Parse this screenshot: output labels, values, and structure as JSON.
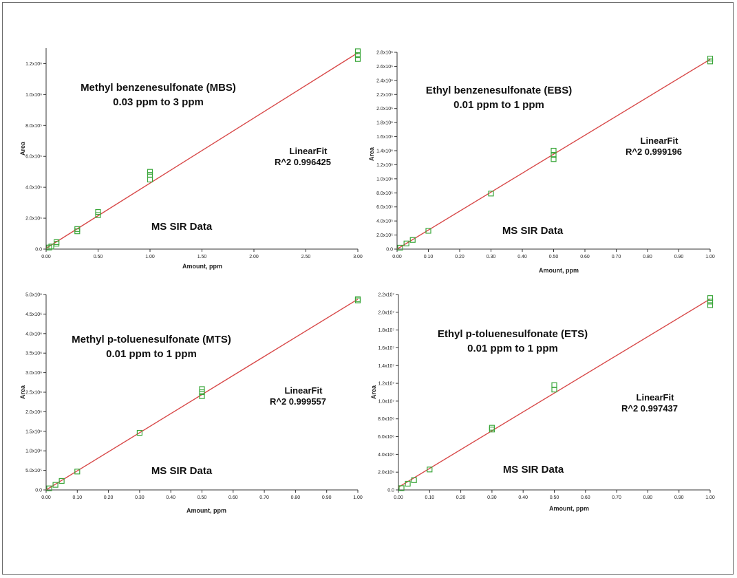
{
  "colors": {
    "fit_line": "#d84a4a",
    "points": "#3aa63a",
    "axis": "#333333"
  },
  "chart_data": [
    {
      "type": "scatter",
      "title_lines": [
        "Methyl benzenesulfonate (MBS)",
        "0.03 ppm to 3 ppm"
      ],
      "fit_label": "LinearFit",
      "r2_label": "R^2  0.996425",
      "annotation": "MS SIR Data",
      "xlabel": "Amount, ppm",
      "ylabel": "Area",
      "xlim": [
        0,
        3.0
      ],
      "ylim": [
        0,
        1300000
      ],
      "x_ticks": [
        0,
        0.5,
        1.0,
        1.5,
        2.0,
        2.5,
        3.0
      ],
      "x_tick_labels": [
        "0.00",
        "0.50",
        "1.00",
        "1.50",
        "2.00",
        "2.50",
        "3.00"
      ],
      "y_ticks": [
        0,
        200000,
        400000,
        600000,
        800000,
        1000000,
        1200000
      ],
      "y_tick_labels": [
        "0.0",
        "2.0x10⁵",
        "4.0x10⁵",
        "6.0x10⁵",
        "8.0x10⁵",
        "1.0x10⁶",
        "1.2x10⁶"
      ],
      "fit": [
        [
          0,
          5000
        ],
        [
          3.0,
          1270000
        ]
      ],
      "points": [
        [
          0.03,
          10000
        ],
        [
          0.05,
          17000
        ],
        [
          0.1,
          35000
        ],
        [
          0.1,
          45000
        ],
        [
          0.3,
          115000
        ],
        [
          0.3,
          130000
        ],
        [
          0.5,
          220000
        ],
        [
          0.5,
          240000
        ],
        [
          1.0,
          450000
        ],
        [
          1.0,
          480000
        ],
        [
          1.0,
          500000
        ],
        [
          3.0,
          1230000
        ],
        [
          3.0,
          1255000
        ],
        [
          3.0,
          1280000
        ]
      ],
      "grid": false
    },
    {
      "type": "scatter",
      "title_lines": [
        "Ethyl benzenesulfonate (EBS)",
        "0.01 ppm to 1 ppm"
      ],
      "fit_label": "LinearFit",
      "r2_label": "R^2  0.999196",
      "annotation": "MS SIR Data",
      "xlabel": "Amount, ppm",
      "ylabel": "Area",
      "xlim": [
        0,
        1.0
      ],
      "ylim": [
        0,
        2800000
      ],
      "x_ticks": [
        0,
        0.1,
        0.2,
        0.3,
        0.4,
        0.5,
        0.6,
        0.7,
        0.8,
        0.9,
        1.0
      ],
      "x_tick_labels": [
        "0.00",
        "0.10",
        "0.20",
        "0.30",
        "0.40",
        "0.50",
        "0.60",
        "0.70",
        "0.80",
        "0.90",
        "1.00"
      ],
      "y_ticks": [
        0,
        200000,
        400000,
        600000,
        800000,
        1000000,
        1200000,
        1400000,
        1600000,
        1800000,
        2000000,
        2200000,
        2400000,
        2600000,
        2800000
      ],
      "y_tick_labels": [
        "0.0",
        "2.0x10⁵",
        "4.0x10⁵",
        "6.0x10⁵",
        "8.0x10⁵",
        "1.0x10⁶",
        "1.2x10⁶",
        "1.4x10⁶",
        "1.6x10⁶",
        "1.8x10⁶",
        "2.0x10⁶",
        "2.2x10⁶",
        "2.4x10⁶",
        "2.6x10⁶",
        "2.8x10⁶"
      ],
      "fit": [
        [
          0,
          0
        ],
        [
          1.0,
          2700000
        ]
      ],
      "points": [
        [
          0.01,
          20000
        ],
        [
          0.03,
          80000
        ],
        [
          0.05,
          130000
        ],
        [
          0.1,
          260000
        ],
        [
          0.3,
          790000
        ],
        [
          0.5,
          1280000
        ],
        [
          0.5,
          1340000
        ],
        [
          0.5,
          1400000
        ],
        [
          1.0,
          2670000
        ],
        [
          1.0,
          2710000
        ]
      ],
      "grid": false
    },
    {
      "type": "scatter",
      "title_lines": [
        "Methyl p-toluenesulfonate (MTS)",
        "0.01 ppm to 1 ppm"
      ],
      "fit_label": "LinearFit",
      "r2_label": "R^2  0.999557",
      "annotation": "MS SIR Data",
      "xlabel": "Amount, ppm",
      "ylabel": "Area",
      "xlim": [
        0,
        1.0
      ],
      "ylim": [
        0,
        5000000
      ],
      "x_ticks": [
        0,
        0.1,
        0.2,
        0.3,
        0.4,
        0.5,
        0.6,
        0.7,
        0.8,
        0.9,
        1.0
      ],
      "x_tick_labels": [
        "0.00",
        "0.10",
        "0.20",
        "0.30",
        "0.40",
        "0.50",
        "0.60",
        "0.70",
        "0.80",
        "0.90",
        "1.00"
      ],
      "y_ticks": [
        0,
        500000,
        1000000,
        1500000,
        2000000,
        2500000,
        3000000,
        3500000,
        4000000,
        4500000,
        5000000
      ],
      "y_tick_labels": [
        "0.0",
        "5.0x10⁵",
        "1.0x10⁶",
        "1.5x10⁶",
        "2.0x10⁶",
        "2.5x10⁶",
        "3.0x10⁶",
        "3.5x10⁶",
        "4.0x10⁶",
        "4.5x10⁶",
        "5.0x10⁶"
      ],
      "fit": [
        [
          0,
          0
        ],
        [
          1.0,
          4880000
        ]
      ],
      "points": [
        [
          0.01,
          40000
        ],
        [
          0.03,
          130000
        ],
        [
          0.05,
          230000
        ],
        [
          0.1,
          470000
        ],
        [
          0.3,
          1460000
        ],
        [
          0.5,
          2400000
        ],
        [
          0.5,
          2500000
        ],
        [
          0.5,
          2580000
        ],
        [
          1.0,
          4850000
        ],
        [
          1.0,
          4880000
        ]
      ],
      "grid": false
    },
    {
      "type": "scatter",
      "title_lines": [
        "Ethyl p-toluenesulfonate (ETS)",
        "0.01 ppm to 1 ppm"
      ],
      "fit_label": "LinearFit",
      "r2_label": "R^2  0.997437",
      "annotation": "MS SIR Data",
      "xlabel": "Amount, ppm",
      "ylabel": "Area",
      "xlim": [
        0,
        1.0
      ],
      "ylim": [
        0,
        22000000
      ],
      "x_ticks": [
        0,
        0.1,
        0.2,
        0.3,
        0.4,
        0.5,
        0.6,
        0.7,
        0.8,
        0.9,
        1.0
      ],
      "x_tick_labels": [
        "0.00",
        "0.10",
        "0.20",
        "0.30",
        "0.40",
        "0.50",
        "0.60",
        "0.70",
        "0.80",
        "0.90",
        "1.00"
      ],
      "y_ticks": [
        0,
        2000000,
        4000000,
        6000000,
        8000000,
        10000000,
        12000000,
        14000000,
        16000000,
        18000000,
        20000000,
        22000000
      ],
      "y_tick_labels": [
        "0.0",
        "2.0x10⁶",
        "4.0x10⁶",
        "6.0x10⁶",
        "8.0x10⁶",
        "1.0x10⁷",
        "1.2x10⁷",
        "1.4x10⁷",
        "1.6x10⁷",
        "1.8x10⁷",
        "2.0x10⁷",
        "2.2x10⁷"
      ],
      "fit": [
        [
          0,
          300000
        ],
        [
          1.0,
          21500000
        ]
      ],
      "points": [
        [
          0.01,
          200000
        ],
        [
          0.03,
          700000
        ],
        [
          0.05,
          1100000
        ],
        [
          0.1,
          2300000
        ],
        [
          0.3,
          6800000
        ],
        [
          0.3,
          7000000
        ],
        [
          0.5,
          11300000
        ],
        [
          0.5,
          11800000
        ],
        [
          1.0,
          20800000
        ],
        [
          1.0,
          21200000
        ],
        [
          1.0,
          21600000
        ]
      ],
      "grid": false
    }
  ]
}
